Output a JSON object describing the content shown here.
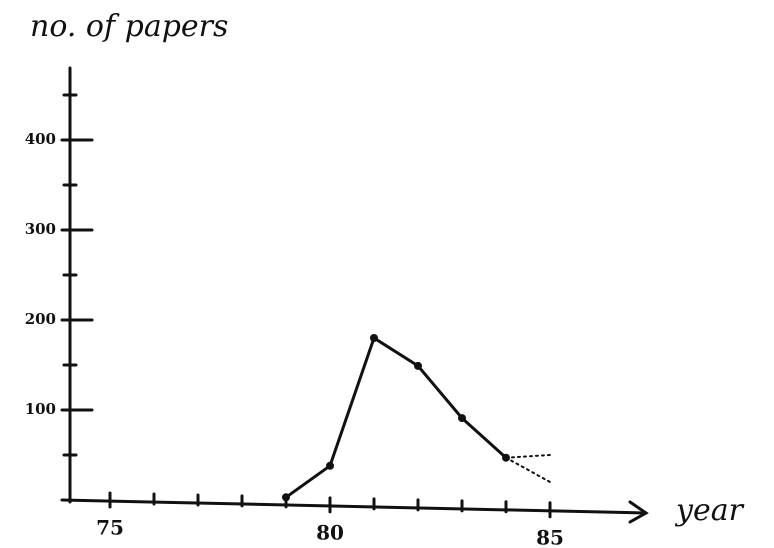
{
  "chart_data": {
    "type": "line",
    "y_label": "no. of papers",
    "x_label": "year",
    "series": [
      {
        "color": "#111111",
        "x": [
          79,
          80,
          81,
          82,
          83,
          84
        ],
        "values": [
          3,
          38,
          180,
          149,
          91,
          47
        ],
        "dashed": false
      },
      {
        "color": "#111111",
        "x": [
          84,
          85
        ],
        "values": [
          47,
          50
        ],
        "dashed": true
      },
      {
        "color": "#111111",
        "x": [
          84,
          85
        ],
        "values": [
          47,
          20
        ],
        "dashed": true
      }
    ],
    "xlim": [
      74,
      87
    ],
    "xticks": [
      75,
      80,
      85
    ],
    "xminorticks": [
      76,
      77,
      78,
      79,
      81,
      82,
      83,
      84
    ],
    "ylim": [
      0,
      480
    ],
    "yticks": [
      100,
      200,
      300,
      400
    ],
    "yminorticks": [
      50,
      150,
      250,
      350,
      450
    ],
    "grid": false
  }
}
